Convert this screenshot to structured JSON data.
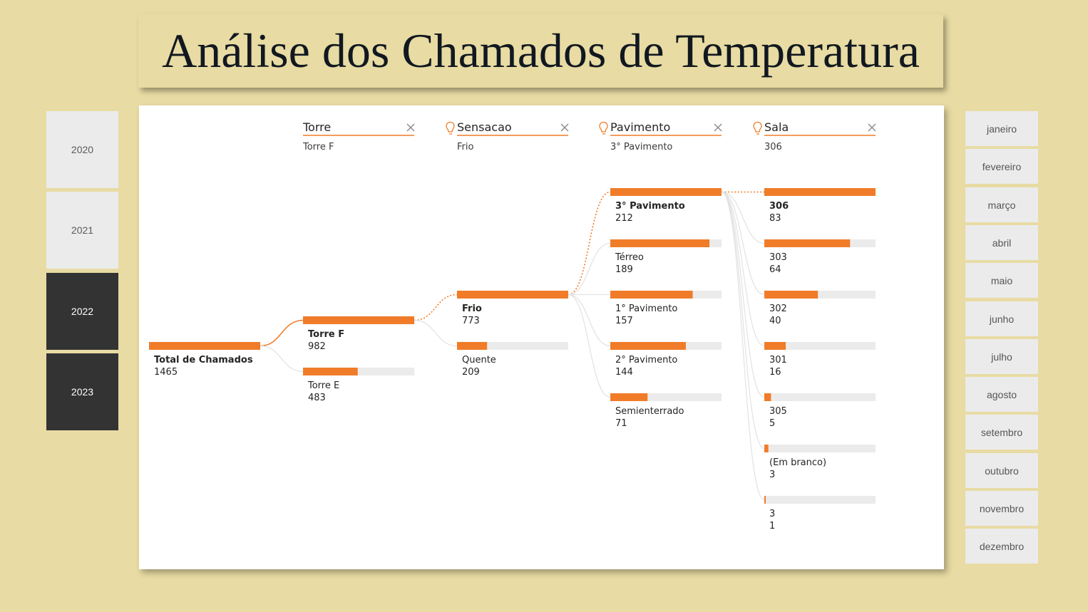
{
  "title": "Análise dos Chamados de Temperatura",
  "years": [
    {
      "label": "2020",
      "selected": false
    },
    {
      "label": "2021",
      "selected": false
    },
    {
      "label": "2022",
      "selected": true
    },
    {
      "label": "2023",
      "selected": true
    }
  ],
  "months": [
    "janeiro",
    "fevereiro",
    "março",
    "abril",
    "maio",
    "junho",
    "julho",
    "agosto",
    "setembro",
    "outubro",
    "novembro",
    "dezembro"
  ],
  "colors": {
    "bar": "#f07c29",
    "track": "#ebebeb",
    "connector": "#e2e2e2",
    "selected_tile": "#333333",
    "tile": "#ebebeb",
    "background": "#e8dba3"
  },
  "chart_data": {
    "type": "decomposition_tree",
    "root": {
      "label": "Total de Chamados",
      "value": 1465
    },
    "levels": [
      {
        "field": "Torre",
        "selected": "Torre F",
        "ai_split": false,
        "nodes": [
          {
            "label": "Torre F",
            "value": 982
          },
          {
            "label": "Torre E",
            "value": 483
          }
        ]
      },
      {
        "field": "Sensacao",
        "selected": "Frio",
        "ai_split": true,
        "nodes": [
          {
            "label": "Frio",
            "value": 773
          },
          {
            "label": "Quente",
            "value": 209
          }
        ]
      },
      {
        "field": "Pavimento",
        "selected": "3° Pavimento",
        "ai_split": true,
        "nodes": [
          {
            "label": "3° Pavimento",
            "value": 212
          },
          {
            "label": "Térreo",
            "value": 189
          },
          {
            "label": "1° Pavimento",
            "value": 157
          },
          {
            "label": "2° Pavimento",
            "value": 144
          },
          {
            "label": "Semienterrado",
            "value": 71
          }
        ]
      },
      {
        "field": "Sala",
        "selected": "306",
        "ai_split": true,
        "nodes": [
          {
            "label": "306",
            "value": 83
          },
          {
            "label": "303",
            "value": 64
          },
          {
            "label": "302",
            "value": 40
          },
          {
            "label": "301",
            "value": 16
          },
          {
            "label": "305",
            "value": 5
          },
          {
            "label": "(Em branco)",
            "value": 3
          },
          {
            "label": "3",
            "value": 1
          }
        ]
      }
    ]
  }
}
